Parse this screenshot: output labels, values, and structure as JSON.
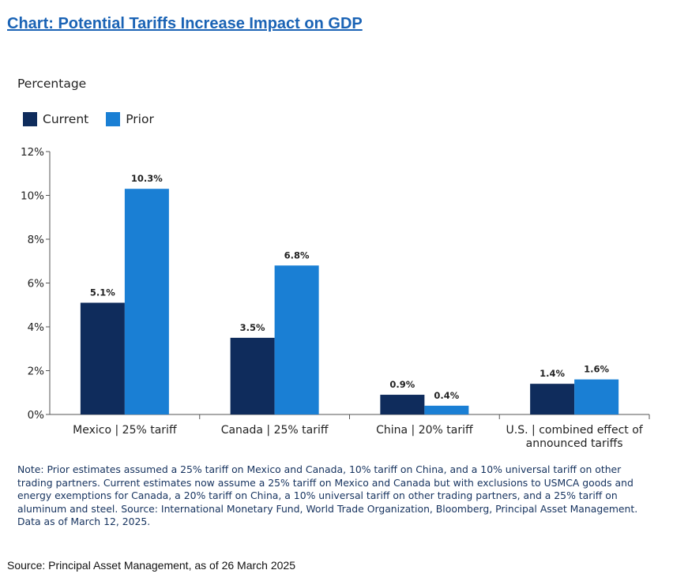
{
  "title": "Chart: Potential Tariffs Increase Impact on GDP",
  "note": "Note: Prior estimates assumed a 25% tariff on Mexico and Canada, 10% tariff on China, and a 10% universal tariff on other trading partners. Current estimates now assume a 25% tariff on Mexico and Canada but with exclusions to USMCA goods and energy exemptions for Canada, a 20% tariff on China, a 10% universal tariff on other trading partners, and a 25% tariff on aluminum and steel. Source: International Monetary Fund, World Trade Organization, Bloomberg, Principal Asset Management. Data as of March 12, 2025.",
  "source": "Source: Principal Asset Management, as of 26 March 2025",
  "chart_data": {
    "type": "bar",
    "ylabel": "Percentage",
    "xlabel": "",
    "ylim": [
      0,
      12
    ],
    "yticks": [
      0,
      2,
      4,
      6,
      8,
      10,
      12
    ],
    "ytick_labels": [
      "0%",
      "2%",
      "4%",
      "6%",
      "8%",
      "10%",
      "12%"
    ],
    "grid": false,
    "legend_position": "top-left",
    "categories": [
      [
        "Mexico | 25% tariff"
      ],
      [
        "Canada | 25% tariff"
      ],
      [
        "China | 20% tariff"
      ],
      [
        "U.S. | combined effect of",
        "announced tariffs"
      ]
    ],
    "series": [
      {
        "name": "Current",
        "color": "#0f2c5c",
        "values": [
          5.1,
          3.5,
          0.9,
          1.4
        ],
        "labels": [
          "5.1%",
          "3.5%",
          "0.9%",
          "1.4%"
        ]
      },
      {
        "name": "Prior",
        "color": "#1a7fd4",
        "values": [
          10.3,
          6.8,
          0.4,
          1.6
        ],
        "labels": [
          "10.3%",
          "6.8%",
          "0.4%",
          "1.6%"
        ]
      }
    ]
  }
}
